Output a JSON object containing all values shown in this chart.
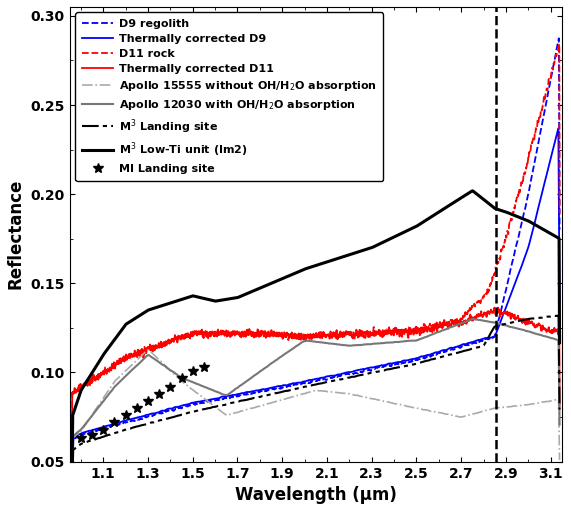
{
  "title": "",
  "xlabel": "Wavelength (μm)",
  "ylabel": "Reflectance",
  "xlim": [
    0.95,
    3.15
  ],
  "ylim": [
    0.05,
    0.305
  ],
  "xticks": [
    1.1,
    1.3,
    1.5,
    1.7,
    1.9,
    2.1,
    2.3,
    2.5,
    2.7,
    2.9,
    3.1
  ],
  "yticks": [
    0.05,
    0.1,
    0.15,
    0.2,
    0.25,
    0.3
  ],
  "vline_x": 2.855,
  "legend_entries": [
    "D9 regolith",
    "Thermally corrected D9",
    "D11 rock",
    "Thermally corrected D11",
    "Apollo 15555 without OH/H$_2$O absorption",
    "Apollo 12030 with OH/H$_2$O absorption",
    "M$^3$ Landing site",
    "M$^3$ Low-Ti unit (Im2)",
    "MI Landing site"
  ],
  "colors": {
    "blue": "#0000FF",
    "red": "#FF0000",
    "gray_light": "#AAAAAA",
    "gray_dark": "#777777",
    "black": "#000000"
  }
}
